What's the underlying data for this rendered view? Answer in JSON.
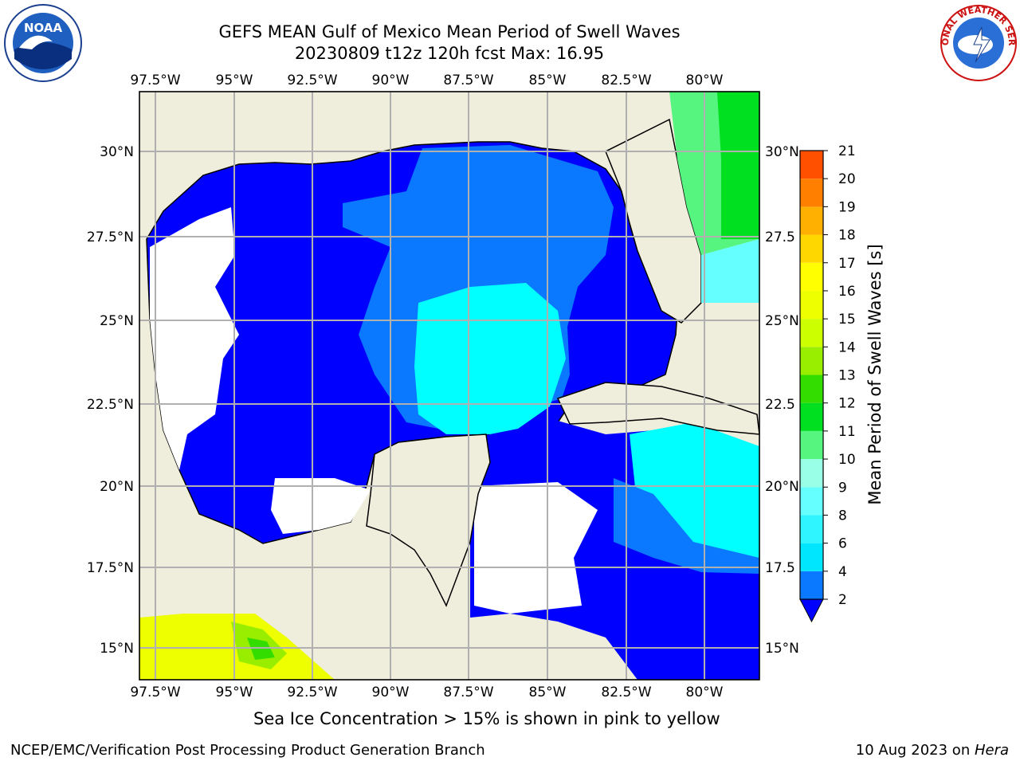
{
  "title": {
    "line1": "GEFS MEAN Gulf of Mexico Mean Period of Swell Waves",
    "line2": "20230809 t12z 120h fcst   Max: 16.95"
  },
  "map": {
    "lon_labels": [
      "97.5°W",
      "95°W",
      "92.5°W",
      "90°W",
      "87.5°W",
      "85°W",
      "82.5°W",
      "80°W"
    ],
    "lat_labels_left": [
      "30°N",
      "27.5°N",
      "25°N",
      "22.5°N",
      "20°N",
      "17.5°N",
      "15°N"
    ],
    "lat_labels_right": [
      "30°N",
      "27.5",
      "25°N",
      "22.5",
      "20°N",
      "17.5",
      "15°N"
    ],
    "colors": {
      "land": "#efeddb",
      "ocean_low": "#0000ff",
      "ocean_mid": "#0a78ff",
      "ocean_high": "#00ffff",
      "grid": "#b0b0b0"
    }
  },
  "colorbar": {
    "label": "Mean Period of Swell Waves [s]",
    "ticks": [
      "2",
      "4",
      "6",
      "8",
      "9",
      "10",
      "11",
      "12",
      "13",
      "14",
      "15",
      "16",
      "17",
      "18",
      "19",
      "20",
      "21"
    ],
    "colors": [
      "#0a78ff",
      "#00e6ff",
      "#2ef5ff",
      "#66ffff",
      "#99ffe6",
      "#55f580",
      "#00e020",
      "#33dd00",
      "#99ee00",
      "#ccff00",
      "#eeff00",
      "#ffff00",
      "#ffd700",
      "#ffb000",
      "#ff8000",
      "#ff5000",
      "#ff2000",
      "#ff0000"
    ],
    "extend_color": "#0000ff"
  },
  "logos": {
    "left": "NOAA",
    "right": "NATIONAL WEATHER SERVICE"
  },
  "note": "Sea Ice Concentration > 15% is shown in pink to yellow",
  "footer": {
    "credit": "NCEP/EMC/Verification Post Processing Product Generation Branch",
    "date_prefix": "10 Aug 2023 on ",
    "host": "Hera"
  }
}
